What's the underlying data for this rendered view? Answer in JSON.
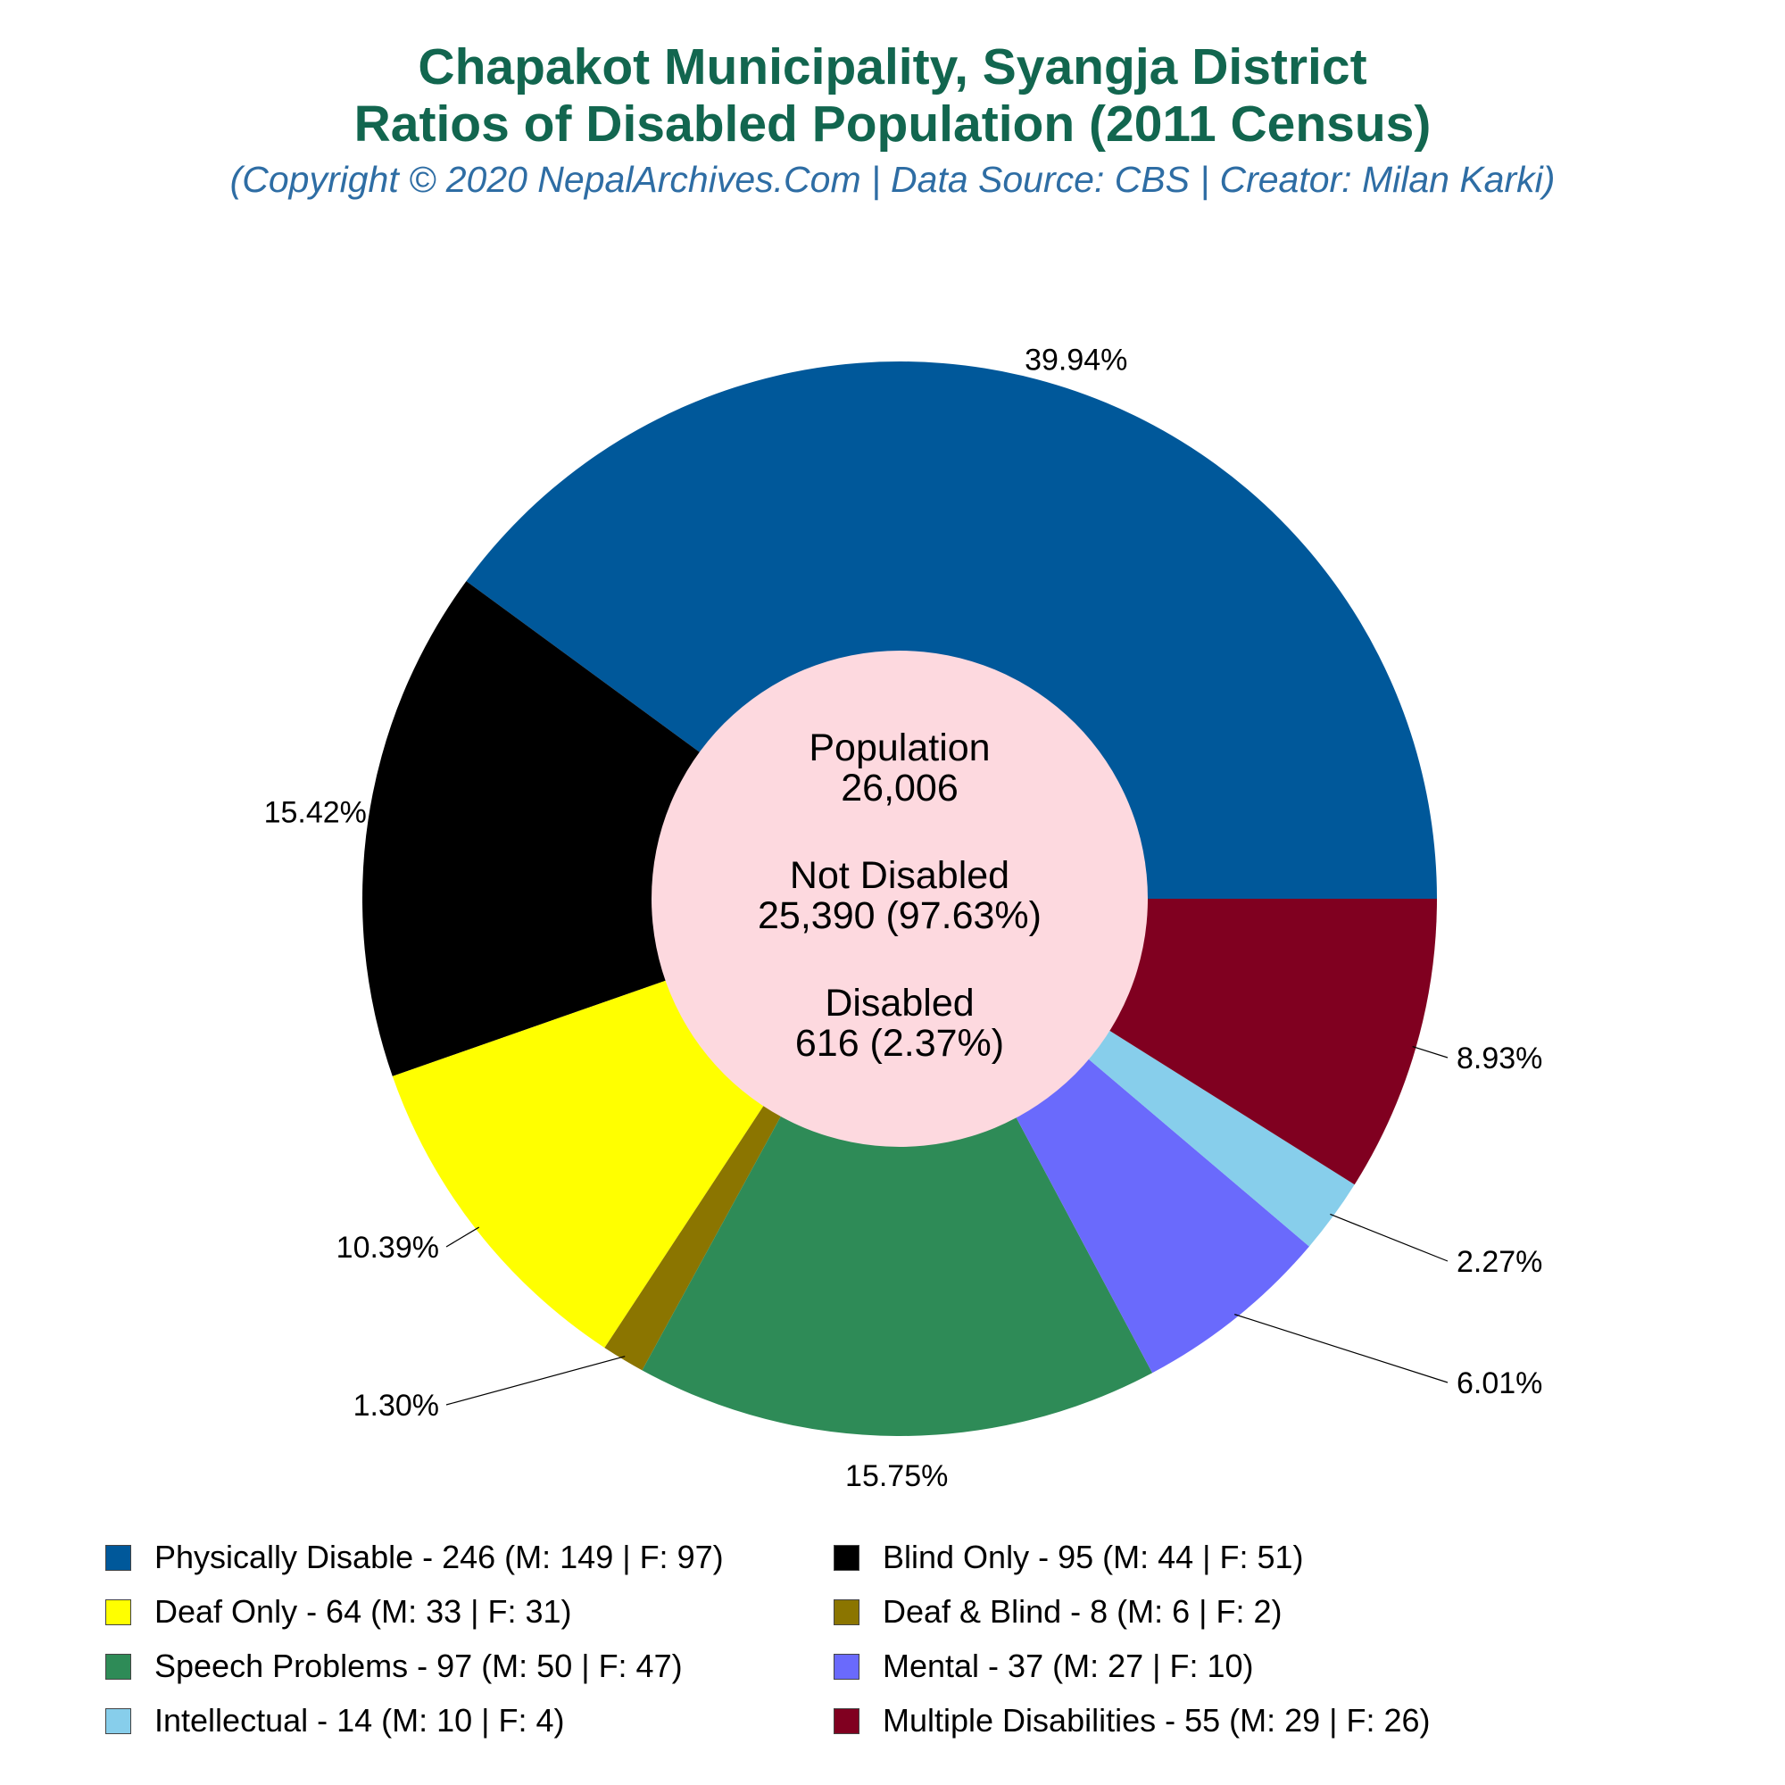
{
  "title_line1": "Chapakot Municipality, Syangja District",
  "title_line2": "Ratios of Disabled Population (2011 Census)",
  "subtitle": "(Copyright © 2020 NepalArchives.Com | Data Source: CBS | Creator: Milan Karki)",
  "center": {
    "population_label": "Population",
    "population_value": "26,006",
    "not_disabled_label": "Not Disabled",
    "not_disabled_value": "25,390 (97.63%)",
    "disabled_label": "Disabled",
    "disabled_value": "616 (2.37%)"
  },
  "chart_data": {
    "type": "pie",
    "donut": true,
    "total": 616,
    "start": "3 o'clock, counter-clockwise",
    "slices": [
      {
        "name": "Physically Disable",
        "value": 246,
        "percent_label": "39.94%",
        "color": "#00589a",
        "legend": "Physically Disable - 246 (M: 149 | F: 97)"
      },
      {
        "name": "Blind Only",
        "value": 95,
        "percent_label": "15.42%",
        "color": "#000000",
        "legend": "Blind Only - 95 (M: 44 | F: 51)"
      },
      {
        "name": "Deaf Only",
        "value": 64,
        "percent_label": "10.39%",
        "color": "#ffff00",
        "legend": "Deaf Only - 64 (M: 33 | F: 31)"
      },
      {
        "name": "Deaf & Blind",
        "value": 8,
        "percent_label": "1.30%",
        "color": "#8b7500",
        "legend": "Deaf & Blind - 8 (M: 6 | F: 2)"
      },
      {
        "name": "Speech Problems",
        "value": 97,
        "percent_label": "15.75%",
        "color": "#2e8b57",
        "legend": "Speech Problems - 97 (M: 50 | F: 47)"
      },
      {
        "name": "Mental",
        "value": 37,
        "percent_label": "6.01%",
        "color": "#6a6afc",
        "legend": "Mental - 37 (M: 27 | F: 10)"
      },
      {
        "name": "Intellectual",
        "value": 14,
        "percent_label": "2.27%",
        "color": "#87ceeb",
        "legend": "Intellectual - 14 (M: 10 | F: 4)"
      },
      {
        "name": "Multiple Disabilities",
        "value": 55,
        "percent_label": "8.93%",
        "color": "#800020",
        "legend": "Multiple Disabilities - 55 (M: 29 | F: 26)"
      }
    ],
    "center_color": "#fdd9df",
    "legend_position": "bottom, 2 columns"
  }
}
